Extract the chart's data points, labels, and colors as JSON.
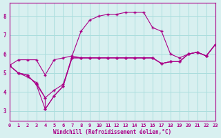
{
  "bg_color": "#d8f0f0",
  "grid_color": "#aadddd",
  "line_color": "#aa0088",
  "xlabel": "Windchill (Refroidissement éolien,°C)",
  "xlabel_color": "#aa0088",
  "xlim": [
    0,
    23
  ],
  "ylim": [
    2.5,
    8.7
  ],
  "yticks": [
    3,
    4,
    5,
    6,
    7,
    8
  ],
  "xticks": [
    0,
    1,
    2,
    3,
    4,
    5,
    6,
    7,
    8,
    9,
    10,
    11,
    12,
    13,
    14,
    15,
    16,
    17,
    18,
    19,
    20,
    21,
    22,
    23
  ],
  "line1_x": [
    0,
    1,
    2,
    3,
    4,
    5,
    6,
    7,
    8,
    9,
    10,
    11,
    12,
    13,
    14,
    15,
    16,
    17,
    18,
    19,
    20,
    21,
    22,
    23
  ],
  "line1_y": [
    5.4,
    5.7,
    5.7,
    5.7,
    4.9,
    5.7,
    5.8,
    5.9,
    5.8,
    5.8,
    5.8,
    5.8,
    5.8,
    5.8,
    5.8,
    5.8,
    5.8,
    5.5,
    5.6,
    5.6,
    6.0,
    6.1,
    5.9,
    6.5
  ],
  "line2_x": [
    0,
    1,
    2,
    3,
    4,
    5,
    6,
    7,
    8,
    9,
    10,
    11,
    12,
    13,
    14,
    15,
    16,
    17,
    18,
    19,
    20,
    21,
    22,
    23
  ],
  "line2_y": [
    5.4,
    5.0,
    4.8,
    4.5,
    3.7,
    4.1,
    4.4,
    5.8,
    5.8,
    5.8,
    5.8,
    5.8,
    5.8,
    5.8,
    5.8,
    5.8,
    5.8,
    5.5,
    5.6,
    5.6,
    6.0,
    6.1,
    5.9,
    6.5
  ],
  "line3_x": [
    0,
    1,
    2,
    3,
    4,
    5,
    6,
    7,
    8,
    9,
    10,
    11,
    12,
    13,
    14,
    15,
    16,
    17,
    18,
    19,
    20,
    21,
    22,
    23
  ],
  "line3_y": [
    5.4,
    5.0,
    4.9,
    4.4,
    3.1,
    3.8,
    4.3,
    5.8,
    5.8,
    5.8,
    5.8,
    5.8,
    5.8,
    5.8,
    5.8,
    5.8,
    5.8,
    5.5,
    5.6,
    5.6,
    6.0,
    6.1,
    5.9,
    6.5
  ],
  "line4_x": [
    0,
    1,
    2,
    3,
    4,
    4,
    5,
    6,
    7,
    8,
    9,
    10,
    11,
    12,
    13,
    14,
    15,
    16,
    17,
    18,
    19,
    20,
    21,
    22,
    23
  ],
  "line4_y": [
    5.4,
    5.0,
    4.9,
    4.4,
    3.7,
    3.1,
    3.8,
    4.3,
    5.9,
    7.2,
    7.8,
    8.0,
    8.1,
    8.1,
    8.2,
    8.2,
    8.2,
    7.4,
    7.2,
    6.0,
    5.8,
    6.0,
    6.1,
    5.9,
    6.5
  ]
}
